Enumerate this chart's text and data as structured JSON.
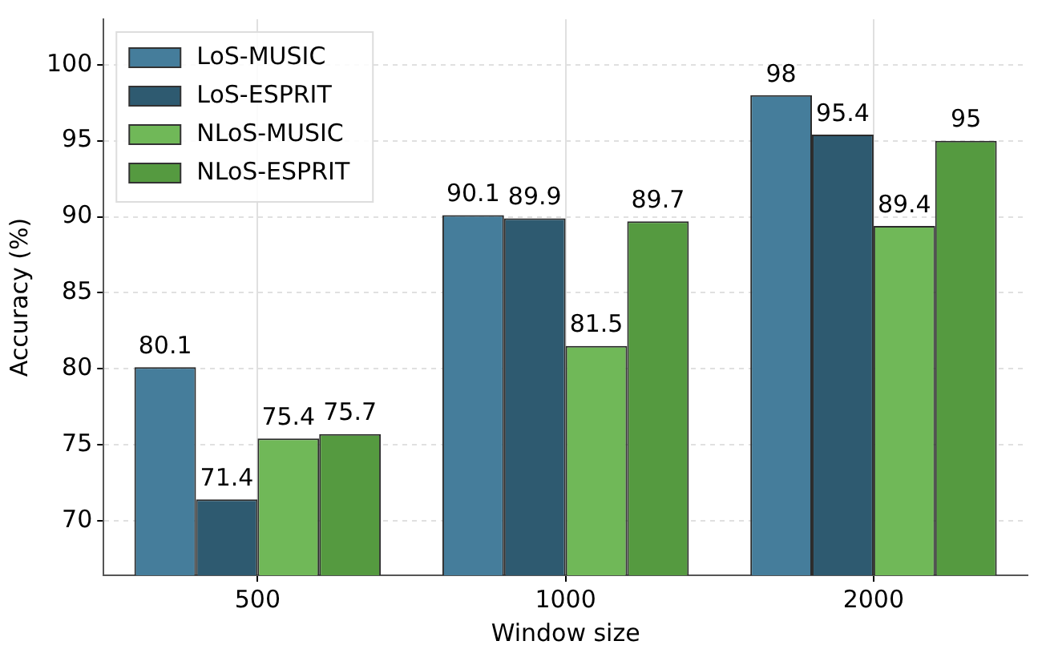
{
  "chart_data": {
    "type": "bar",
    "xlabel": "Window size",
    "ylabel": "Accuracy (%)",
    "categories": [
      "500",
      "1000",
      "2000"
    ],
    "series": [
      {
        "name": "LoS-MUSIC",
        "color": "#457d9b",
        "values": [
          80.1,
          90.1,
          98
        ]
      },
      {
        "name": "LoS-ESPRIT",
        "color": "#2e5a70",
        "values": [
          71.4,
          89.9,
          95.4
        ]
      },
      {
        "name": "NLoS-MUSIC",
        "color": "#70b858",
        "values": [
          75.4,
          81.5,
          89.4
        ]
      },
      {
        "name": "NLoS-ESPRIT",
        "color": "#559a40",
        "values": [
          75.7,
          89.7,
          95
        ]
      }
    ],
    "ylim": [
      66.4,
      103
    ],
    "yticks": [
      70,
      75,
      80,
      85,
      90,
      95,
      100
    ],
    "grid": true,
    "legend": "top left",
    "data_labels": true
  }
}
